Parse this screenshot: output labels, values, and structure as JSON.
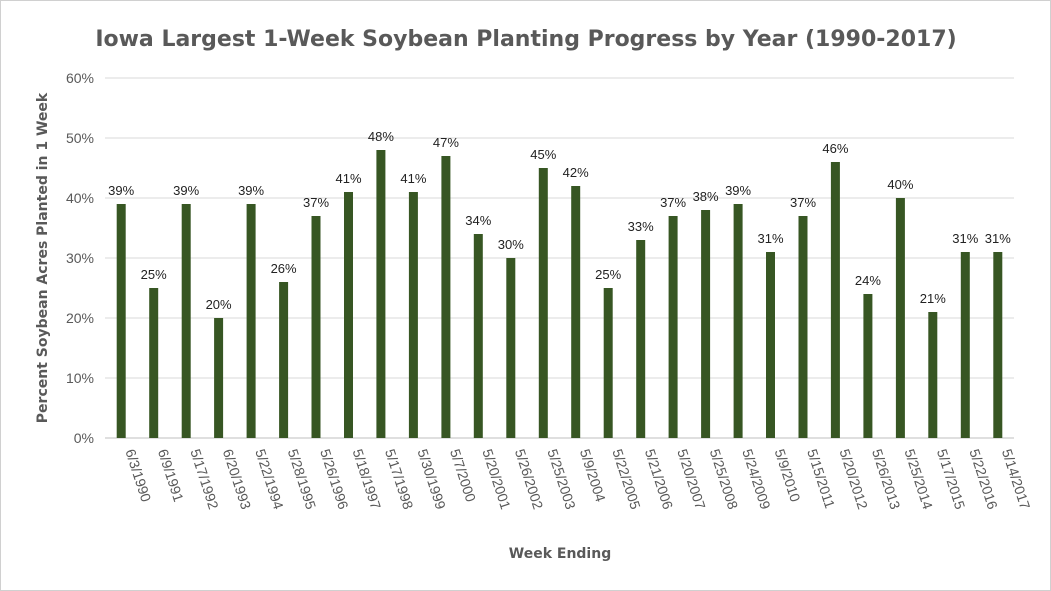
{
  "chart_data": {
    "type": "bar",
    "title": "Iowa Largest 1-Week Soybean Planting Progress by Year (1990-2017)",
    "xlabel": "Week Ending",
    "ylabel": "Percent Soybean Acres Planted in 1 Week",
    "ylim": [
      0,
      60
    ],
    "yticks": [
      "0%",
      "10%",
      "20%",
      "30%",
      "40%",
      "50%",
      "60%"
    ],
    "grid": true,
    "bar_color": "#375623",
    "categories": [
      "6/3/1990",
      "6/9/1991",
      "5/17/1992",
      "6/20/1993",
      "5/22/1994",
      "5/28/1995",
      "5/26/1996",
      "5/18/1997",
      "5/17/1998",
      "5/30/1999",
      "5/7/2000",
      "5/20/2001",
      "5/26/2002",
      "5/25/2003",
      "5/9/2004",
      "5/22/2005",
      "5/21/2006",
      "5/20/2007",
      "5/25/2008",
      "5/24/2009",
      "5/9/2010",
      "5/15/2011",
      "5/20/2012",
      "5/26/2013",
      "5/25/2014",
      "5/17/2015",
      "5/22/2016",
      "5/14/2017"
    ],
    "values": [
      39,
      25,
      39,
      20,
      39,
      26,
      37,
      41,
      48,
      41,
      47,
      34,
      30,
      45,
      42,
      25,
      33,
      37,
      38,
      39,
      31,
      37,
      46,
      24,
      40,
      21,
      31,
      31
    ],
    "data_labels": [
      "39%",
      "25%",
      "39%",
      "20%",
      "39%",
      "26%",
      "37%",
      "41%",
      "48%",
      "41%",
      "47%",
      "34%",
      "30%",
      "45%",
      "42%",
      "25%",
      "33%",
      "37%",
      "38%",
      "39%",
      "31%",
      "37%",
      "46%",
      "24%",
      "40%",
      "21%",
      "31%",
      "31%"
    ]
  }
}
